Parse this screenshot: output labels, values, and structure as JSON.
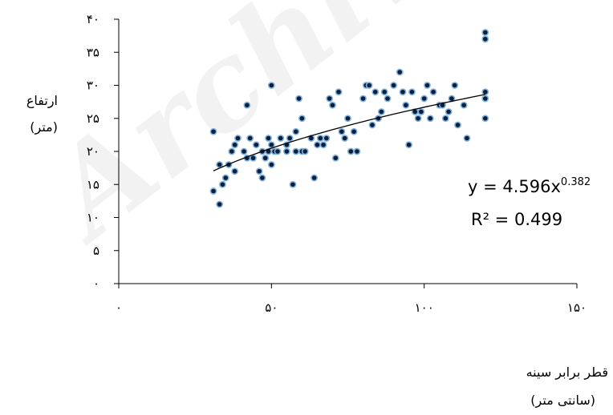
{
  "watermark_text": "Archive of SID",
  "chart_data": {
    "type": "scatter",
    "ylabel_line1": "ارتفاع",
    "ylabel_line2": "(متر)",
    "xlabel_line1": "قطر برابر سینه",
    "xlabel_line2": "(سانتی متر)",
    "xlim": [
      0,
      150
    ],
    "ylim": [
      0,
      40
    ],
    "x_ticks": [
      0,
      50,
      100,
      150
    ],
    "x_tick_labels": [
      "۰",
      "۵۰",
      "۱۰۰",
      "۱۵۰"
    ],
    "y_ticks": [
      0,
      5,
      10,
      15,
      20,
      25,
      30,
      35,
      40
    ],
    "y_tick_labels": [
      "۰",
      "۵",
      "۱۰",
      "۱۵",
      "۲۰",
      "۲۵",
      "۳۰",
      "۳۵",
      "۴۰"
    ],
    "grid": false,
    "marker_color": "#0b1f3a",
    "marker_edge_color": "#7fb2e0",
    "trendline": {
      "type": "power",
      "a": 4.596,
      "b": 0.382,
      "x_range": [
        31,
        120
      ],
      "equation_label": "y = 4.596x",
      "equation_exponent": "0.382",
      "r2_label": "R² = 0.499"
    },
    "x": [
      31,
      31,
      33,
      33,
      34,
      35,
      36,
      37,
      38,
      38,
      39,
      41,
      42,
      42,
      43,
      44,
      45,
      46,
      47,
      47,
      48,
      49,
      49,
      50,
      50,
      50,
      51,
      52,
      53,
      55,
      55,
      56,
      57,
      58,
      58,
      59,
      60,
      60,
      61,
      63,
      64,
      65,
      66,
      67,
      68,
      69,
      70,
      71,
      72,
      73,
      74,
      75,
      76,
      77,
      78,
      80,
      81,
      82,
      83,
      84,
      85,
      86,
      87,
      88,
      90,
      92,
      93,
      94,
      95,
      96,
      97,
      98,
      99,
      100,
      101,
      102,
      103,
      105,
      106,
      107,
      108,
      109,
      110,
      111,
      113,
      114,
      120,
      120,
      120,
      120,
      120,
      120
    ],
    "y": [
      23,
      14,
      12,
      18,
      15,
      16,
      18,
      20,
      17,
      21,
      22,
      20,
      27,
      19,
      22,
      19,
      21,
      17,
      20,
      16,
      19,
      20,
      22,
      18,
      21,
      30,
      20,
      20,
      22,
      20,
      21,
      22,
      15,
      23,
      20,
      28,
      20,
      25,
      20,
      22,
      16,
      21,
      22,
      21,
      22,
      28,
      27,
      19,
      29,
      23,
      22,
      25,
      20,
      23,
      20,
      28,
      30,
      30,
      24,
      29,
      25,
      26,
      29,
      28,
      30,
      32,
      29,
      27,
      21,
      29,
      26,
      25,
      26,
      28,
      30,
      25,
      29,
      27,
      27,
      25,
      26,
      28,
      30,
      24,
      27,
      22,
      29,
      38,
      37,
      28,
      28,
      25
    ]
  }
}
